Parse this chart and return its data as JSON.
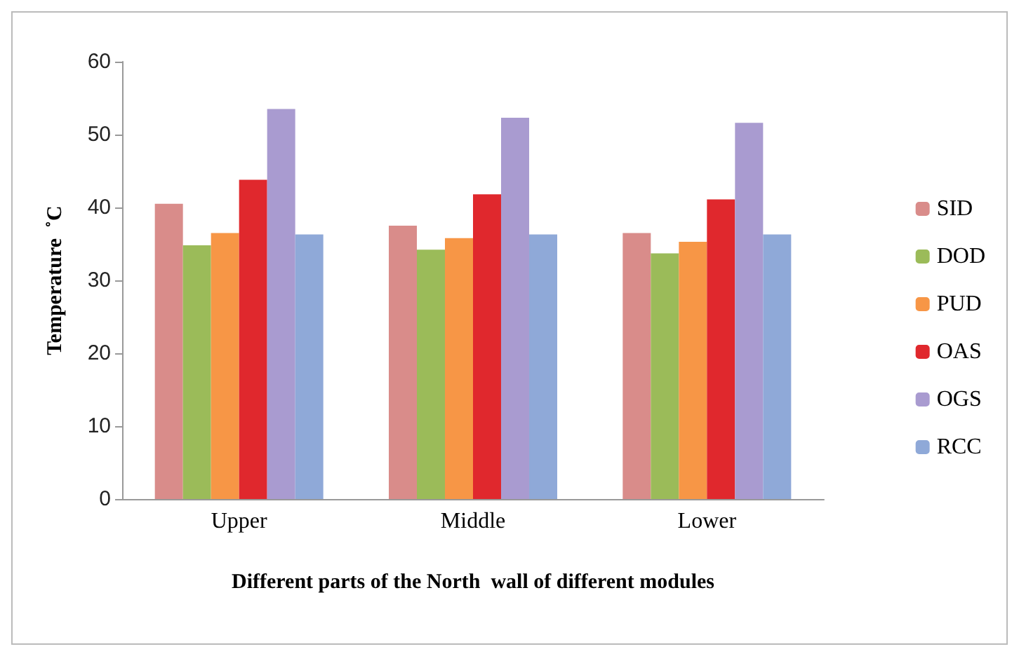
{
  "chart_data": {
    "type": "bar",
    "xlabel": "Different parts of the North  wall of different modules",
    "ylabel": "Temperature  ˚C",
    "categories": [
      "Upper",
      "Middle",
      "Lower"
    ],
    "series": [
      {
        "name": "SID",
        "color": "#d98c8a",
        "values": [
          40.5,
          37.5,
          36.5
        ]
      },
      {
        "name": "DOD",
        "color": "#9bbb59",
        "values": [
          34.8,
          34.2,
          33.7
        ]
      },
      {
        "name": "PUD",
        "color": "#f79646",
        "values": [
          36.5,
          35.8,
          35.3
        ]
      },
      {
        "name": "OAS",
        "color": "#e0282d",
        "values": [
          43.8,
          41.8,
          41.1
        ]
      },
      {
        "name": "OGS",
        "color": "#a99bd0",
        "values": [
          53.5,
          52.3,
          51.6
        ]
      },
      {
        "name": "RCC",
        "color": "#8fa9d8",
        "values": [
          36.3,
          36.3,
          36.3
        ]
      }
    ],
    "ylim": [
      0,
      60
    ],
    "yticks": [
      0,
      10,
      20,
      30,
      40,
      50,
      60
    ],
    "grid": false,
    "legend": "right"
  }
}
